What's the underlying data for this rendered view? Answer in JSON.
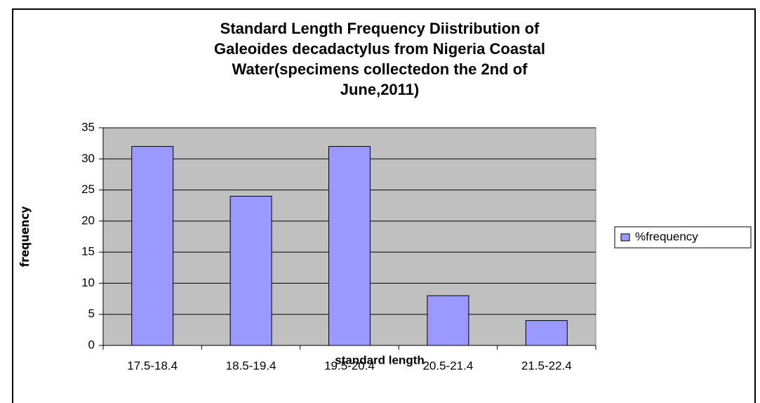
{
  "chart_data": {
    "type": "bar",
    "title": [
      "Standard Length Frequency Diistribution of",
      "Galeoides decadactylus from Nigeria Coastal",
      "Water(specimens collectedon the 2nd of",
      "June,2011)"
    ],
    "x_label": "standard length",
    "y_label": "frequency",
    "categories": [
      "17.5-18.4",
      "18.5-19.4",
      "19.5-20.4",
      "20.5-21.4",
      "21.5-22.4"
    ],
    "series": [
      {
        "name": "%frequency",
        "color": "#9999ff",
        "values": [
          32,
          24,
          32,
          8,
          4
        ]
      }
    ],
    "ylim": [
      0,
      35
    ],
    "yticks": [
      0,
      5,
      10,
      15,
      20,
      25,
      30,
      35
    ],
    "grid": true,
    "legend": "right"
  }
}
